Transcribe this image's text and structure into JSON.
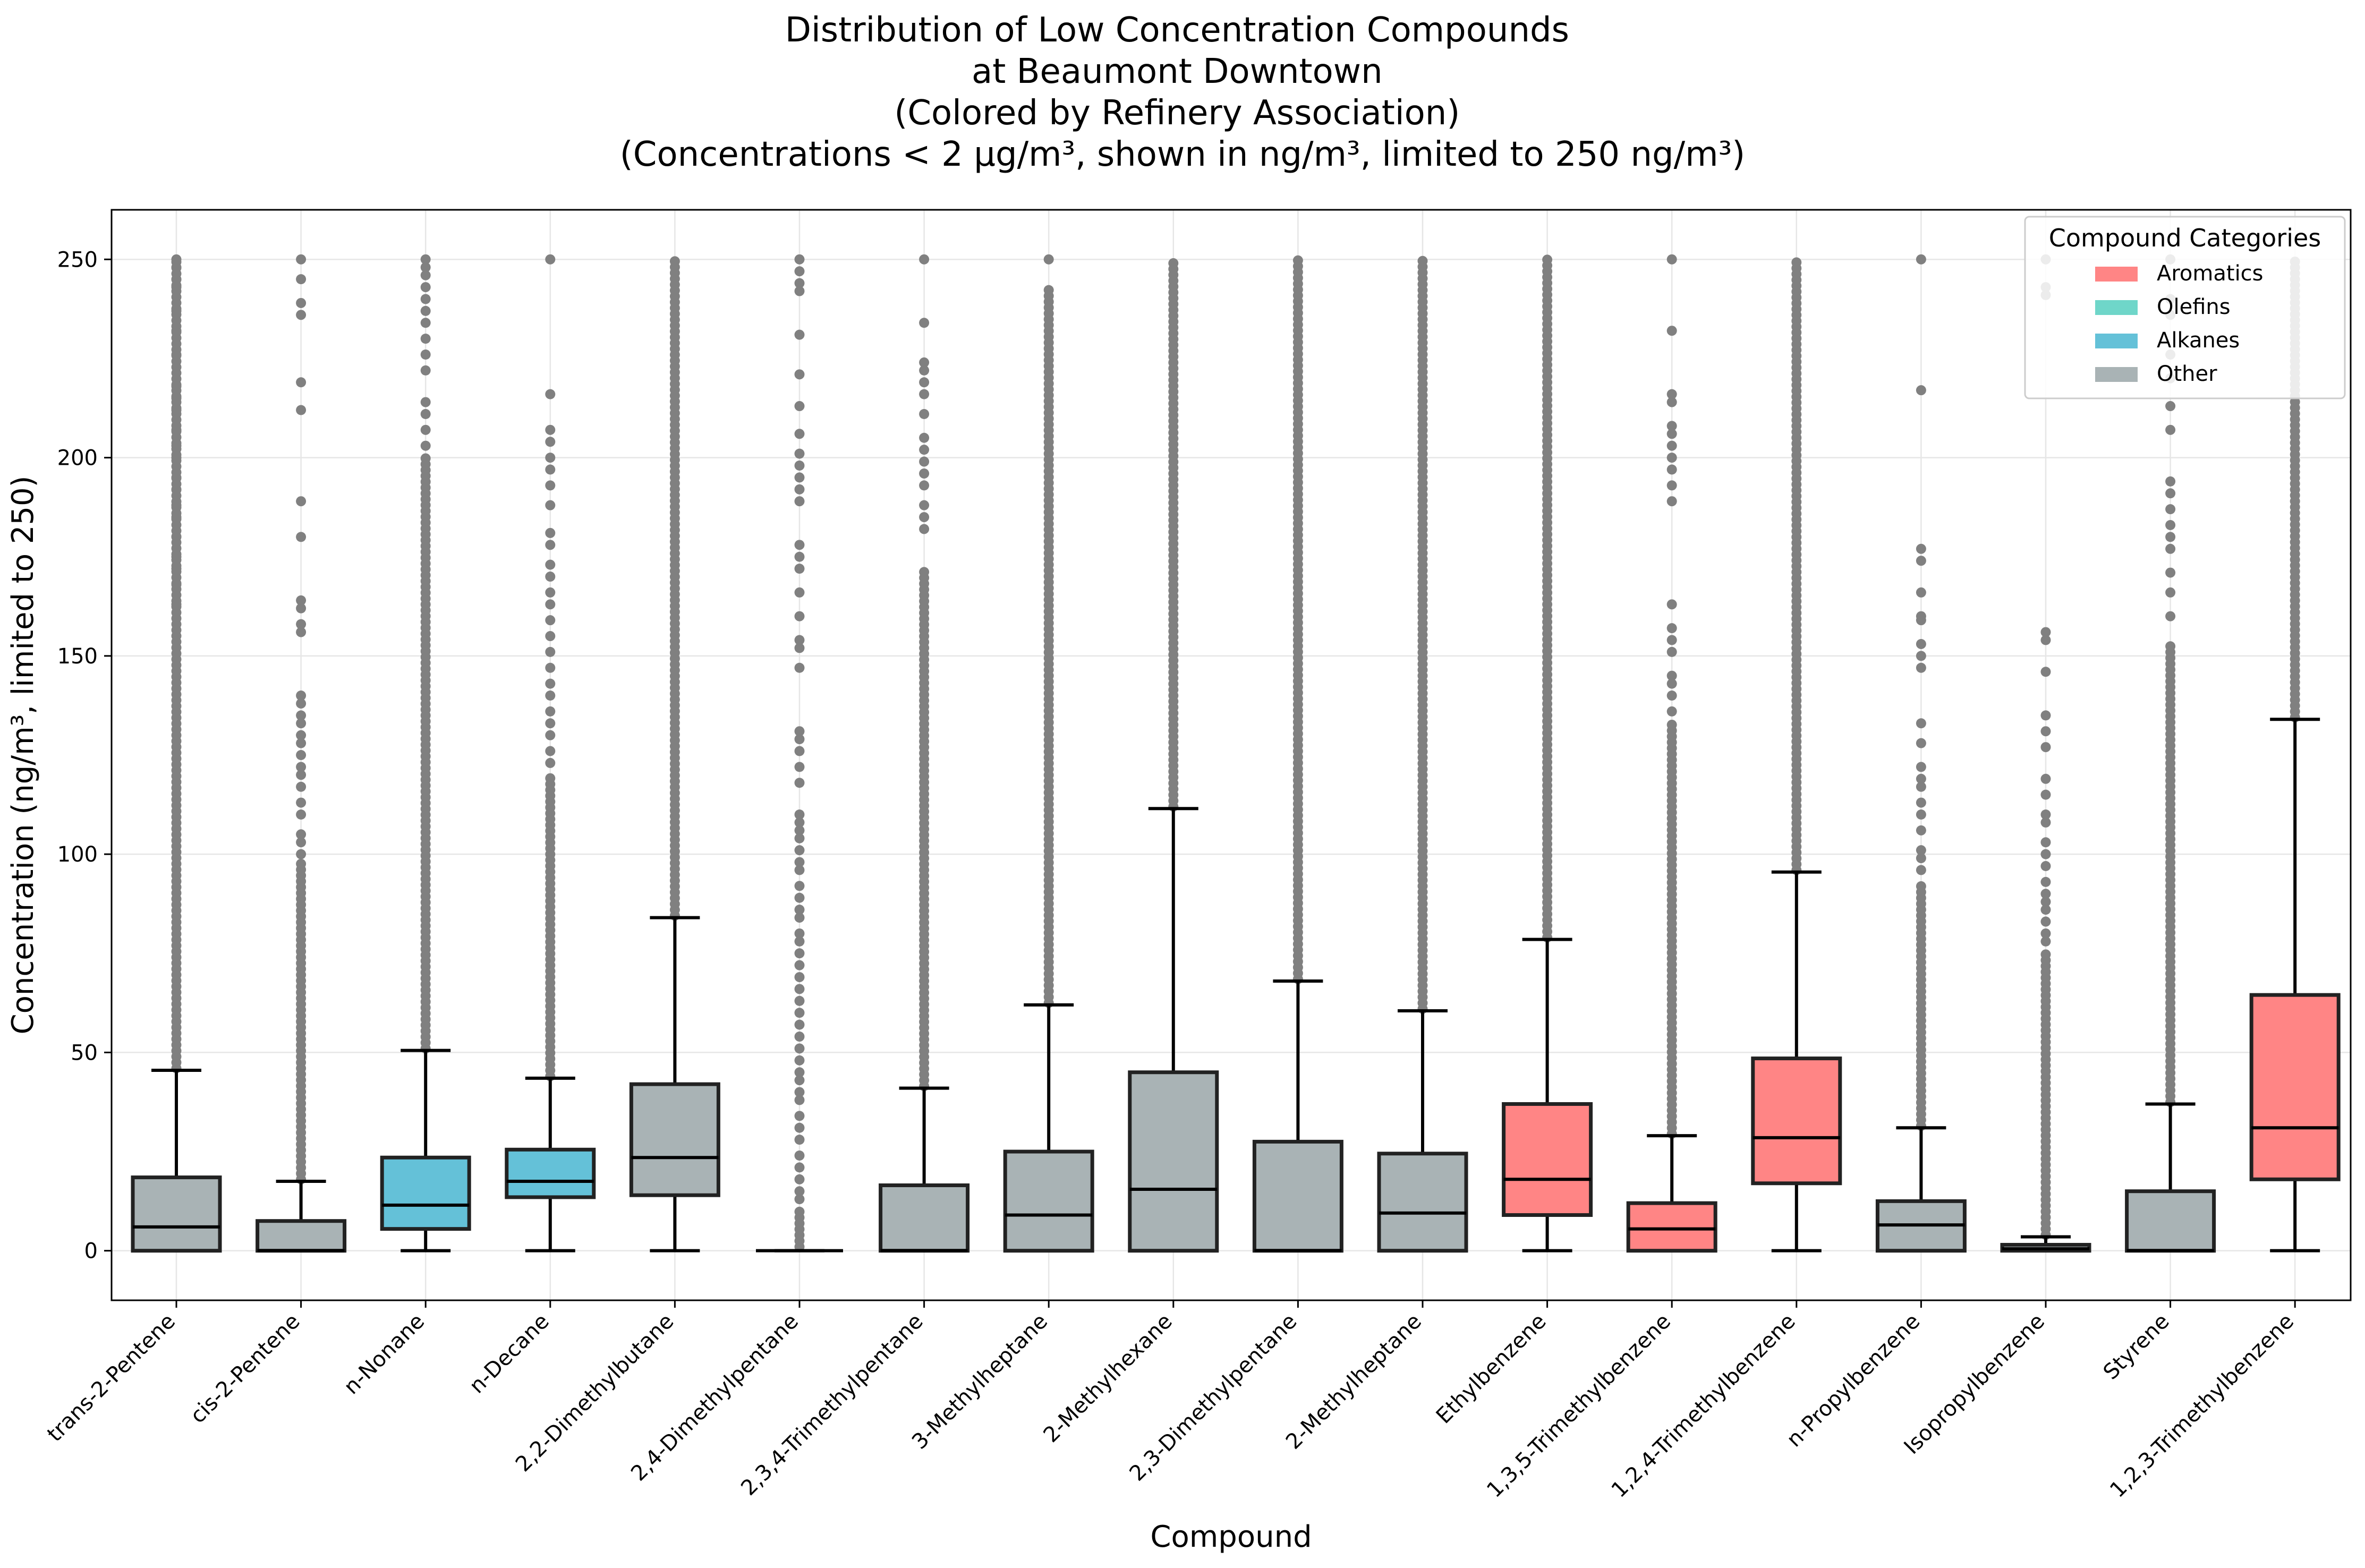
{
  "chart_data": {
    "type": "box",
    "title": [
      "Distribution of Low Concentration Compounds",
      "at Beaumont Downtown",
      "(Colored by Refinery Association)",
      "(Concentrations < 2 µg/m³, shown in ng/m³, limited to 250 ng/m³)"
    ],
    "xlabel": "Compound",
    "ylabel": "Concentration (ng/m³, limited to 250)",
    "ylim": [
      -12.5,
      262.5
    ],
    "yticks": [
      0,
      50,
      100,
      150,
      200,
      250
    ],
    "grid": true,
    "legend": {
      "title": "Compound Categories",
      "placement": "top-right",
      "entries": [
        {
          "label": "Aromatics",
          "color": "#ff8585"
        },
        {
          "label": "Olefins",
          "color": "#6fd6c9"
        },
        {
          "label": "Alkanes",
          "color": "#64c1d8"
        },
        {
          "label": "Other",
          "color": "#a9b3b5"
        }
      ]
    },
    "categories": [
      "trans-2-Pentene",
      "cis-2-Pentene",
      "n-Nonane",
      "n-Decane",
      "2,2-Dimethylbutane",
      "2,4-Dimethylpentane",
      "2,3,4-Trimethylpentane",
      "3-Methylheptane",
      "2-Methylhexane",
      "2,3-Dimethylpentane",
      "2-Methylheptane",
      "Ethylbenzene",
      "1,3,5-Trimethylbenzene",
      "1,2,4-Trimethylbenzene",
      "n-Propylbenzene",
      "Isopropylbenzene",
      "Styrene",
      "1,2,3-Trimethylbenzene"
    ],
    "boxes": [
      {
        "compound": "trans-2-Pentene",
        "category": "Other",
        "whisker_low": 0,
        "q1": 0,
        "median": 6,
        "q3": 18.5,
        "whisker_high": 45.5,
        "outlier_start": 46,
        "outliers_dense_to": 250,
        "outliers_sparse": [
          163,
          168,
          172,
          175,
          180,
          185,
          188,
          192,
          195,
          200,
          203,
          207,
          212,
          215,
          218,
          226,
          232,
          237,
          243,
          245,
          248,
          250
        ]
      },
      {
        "compound": "cis-2-Pentene",
        "category": "Other",
        "whisker_low": 0,
        "q1": 0,
        "median": 0,
        "q3": 7.5,
        "whisker_high": 17.5,
        "outlier_start": 18,
        "outliers_dense_to": 98,
        "outliers_sparse": [
          100,
          103,
          105,
          110,
          113,
          117,
          120,
          122,
          125,
          128,
          130,
          133,
          135,
          138,
          140,
          156,
          158,
          162,
          164,
          180,
          189,
          212,
          219,
          236,
          239,
          245,
          250
        ]
      },
      {
        "compound": "n-Nonane",
        "category": "Alkanes",
        "whisker_low": 0,
        "q1": 5.5,
        "median": 11.5,
        "q3": 23.5,
        "whisker_high": 50.5,
        "outlier_start": 51,
        "outliers_dense_to": 200,
        "outliers_sparse": [
          203,
          207,
          211,
          214,
          222,
          226,
          230,
          234,
          237,
          240,
          243,
          246,
          248,
          250
        ]
      },
      {
        "compound": "n-Decane",
        "category": "Alkanes",
        "whisker_low": 0,
        "q1": 13.5,
        "median": 17.5,
        "q3": 25.5,
        "whisker_high": 43.5,
        "outlier_start": 44,
        "outliers_dense_to": 120,
        "outliers_sparse": [
          123,
          126,
          130,
          133,
          136,
          140,
          143,
          147,
          151,
          155,
          159,
          163,
          166,
          170,
          173,
          178,
          181,
          188,
          193,
          197,
          200,
          204,
          207,
          216,
          250
        ]
      },
      {
        "compound": "2,2-Dimethylbutane",
        "category": "Other",
        "whisker_low": 0,
        "q1": 14,
        "median": 23.5,
        "q3": 42,
        "whisker_high": 84,
        "outlier_start": 84.5,
        "outliers_dense_to": 250,
        "outliers_sparse": []
      },
      {
        "compound": "2,4-Dimethylpentane",
        "category": "Other",
        "whisker_low": 0,
        "q1": 0,
        "median": 0,
        "q3": 0,
        "whisker_high": 0,
        "outlier_start": 1,
        "outliers_dense_to": 10,
        "outliers_sparse": [
          13,
          15,
          18,
          21,
          24,
          28,
          31,
          34,
          38,
          40,
          43,
          45,
          48,
          51,
          54,
          57,
          60,
          63,
          66,
          69,
          72,
          75,
          78,
          80,
          84,
          86,
          89,
          92,
          96,
          98,
          101,
          104,
          106,
          108,
          110,
          118,
          122,
          126,
          129,
          131,
          147,
          152,
          154,
          160,
          166,
          172,
          175,
          178,
          189,
          192,
          195,
          198,
          201,
          206,
          213,
          221,
          231,
          242,
          244,
          247,
          250
        ]
      },
      {
        "compound": "2,3,4-Trimethylpentane",
        "category": "Other",
        "whisker_low": 0,
        "q1": 0,
        "median": 0,
        "q3": 16.5,
        "whisker_high": 41,
        "outlier_start": 41.5,
        "outliers_dense_to": 172,
        "outliers_sparse": [
          182,
          185,
          188,
          193,
          196,
          199,
          202,
          205,
          211,
          216,
          219,
          222,
          224,
          234,
          250
        ]
      },
      {
        "compound": "3-Methylheptane",
        "category": "Other",
        "whisker_low": 0,
        "q1": 0,
        "median": 9,
        "q3": 25,
        "whisker_high": 62,
        "outlier_start": 62.5,
        "outliers_dense_to": 243,
        "outliers_sparse": [
          250
        ]
      },
      {
        "compound": "2-Methylhexane",
        "category": "Other",
        "whisker_low": 0,
        "q1": 0,
        "median": 15.5,
        "q3": 45,
        "whisker_high": 111.5,
        "outlier_start": 112,
        "outliers_dense_to": 250,
        "outliers_sparse": []
      },
      {
        "compound": "2,3-Dimethylpentane",
        "category": "Other",
        "whisker_low": 0,
        "q1": 0,
        "median": 0,
        "q3": 27.5,
        "whisker_high": 68,
        "outlier_start": 68.5,
        "outliers_dense_to": 250,
        "outliers_sparse": []
      },
      {
        "compound": "2-Methylheptane",
        "category": "Other",
        "whisker_low": 0,
        "q1": 0,
        "median": 9.5,
        "q3": 24.5,
        "whisker_high": 60.5,
        "outlier_start": 61,
        "outliers_dense_to": 250,
        "outliers_sparse": []
      },
      {
        "compound": "Ethylbenzene",
        "category": "Aromatics",
        "whisker_low": 0,
        "q1": 9,
        "median": 18,
        "q3": 37,
        "whisker_high": 78.5,
        "outlier_start": 79,
        "outliers_dense_to": 250,
        "outliers_sparse": []
      },
      {
        "compound": "1,3,5-Trimethylbenzene",
        "category": "Aromatics",
        "whisker_low": 0,
        "q1": 0,
        "median": 5.5,
        "q3": 12,
        "whisker_high": 29,
        "outlier_start": 29.5,
        "outliers_dense_to": 133,
        "outliers_sparse": [
          136,
          140,
          143,
          145,
          151,
          154,
          157,
          163,
          189,
          193,
          197,
          200,
          203,
          206,
          208,
          214,
          216,
          232,
          250
        ]
      },
      {
        "compound": "1,2,4-Trimethylbenzene",
        "category": "Aromatics",
        "whisker_low": 0,
        "q1": 17,
        "median": 28.5,
        "q3": 48.5,
        "whisker_high": 95.5,
        "outlier_start": 96,
        "outliers_dense_to": 250,
        "outliers_sparse": []
      },
      {
        "compound": "n-Propylbenzene",
        "category": "Other",
        "whisker_low": 0,
        "q1": 0,
        "median": 6.5,
        "q3": 12.5,
        "whisker_high": 31,
        "outlier_start": 31.5,
        "outliers_dense_to": 92,
        "outliers_sparse": [
          96,
          99,
          101,
          106,
          110,
          113,
          117,
          119,
          122,
          128,
          133,
          147,
          150,
          153,
          159,
          160,
          166,
          174,
          177,
          217,
          250
        ]
      },
      {
        "compound": "Isopropylbenzene",
        "category": "Other",
        "whisker_low": 0,
        "q1": 0,
        "median": 0.5,
        "q3": 1.5,
        "whisker_high": 3.5,
        "outlier_start": 4,
        "outliers_dense_to": 75,
        "outliers_sparse": [
          78,
          80,
          83,
          86,
          88,
          90,
          93,
          97,
          100,
          103,
          108,
          110,
          115,
          119,
          127,
          131,
          135,
          146,
          154,
          156,
          241,
          243,
          250
        ]
      },
      {
        "compound": "Styrene",
        "category": "Other",
        "whisker_low": 0,
        "q1": 0,
        "median": 0,
        "q3": 15,
        "whisker_high": 37,
        "outlier_start": 37.5,
        "outliers_dense_to": 153,
        "outliers_sparse": [
          160,
          166,
          171,
          177,
          180,
          183,
          187,
          191,
          194,
          207,
          213,
          220,
          226,
          236,
          240,
          250
        ]
      },
      {
        "compound": "1,2,3-Trimethylbenzene",
        "category": "Aromatics",
        "whisker_low": 0,
        "q1": 18,
        "median": 31,
        "q3": 64.5,
        "whisker_high": 134,
        "outlier_start": 134.5,
        "outliers_dense_to": 250,
        "outliers_sparse": []
      }
    ]
  }
}
